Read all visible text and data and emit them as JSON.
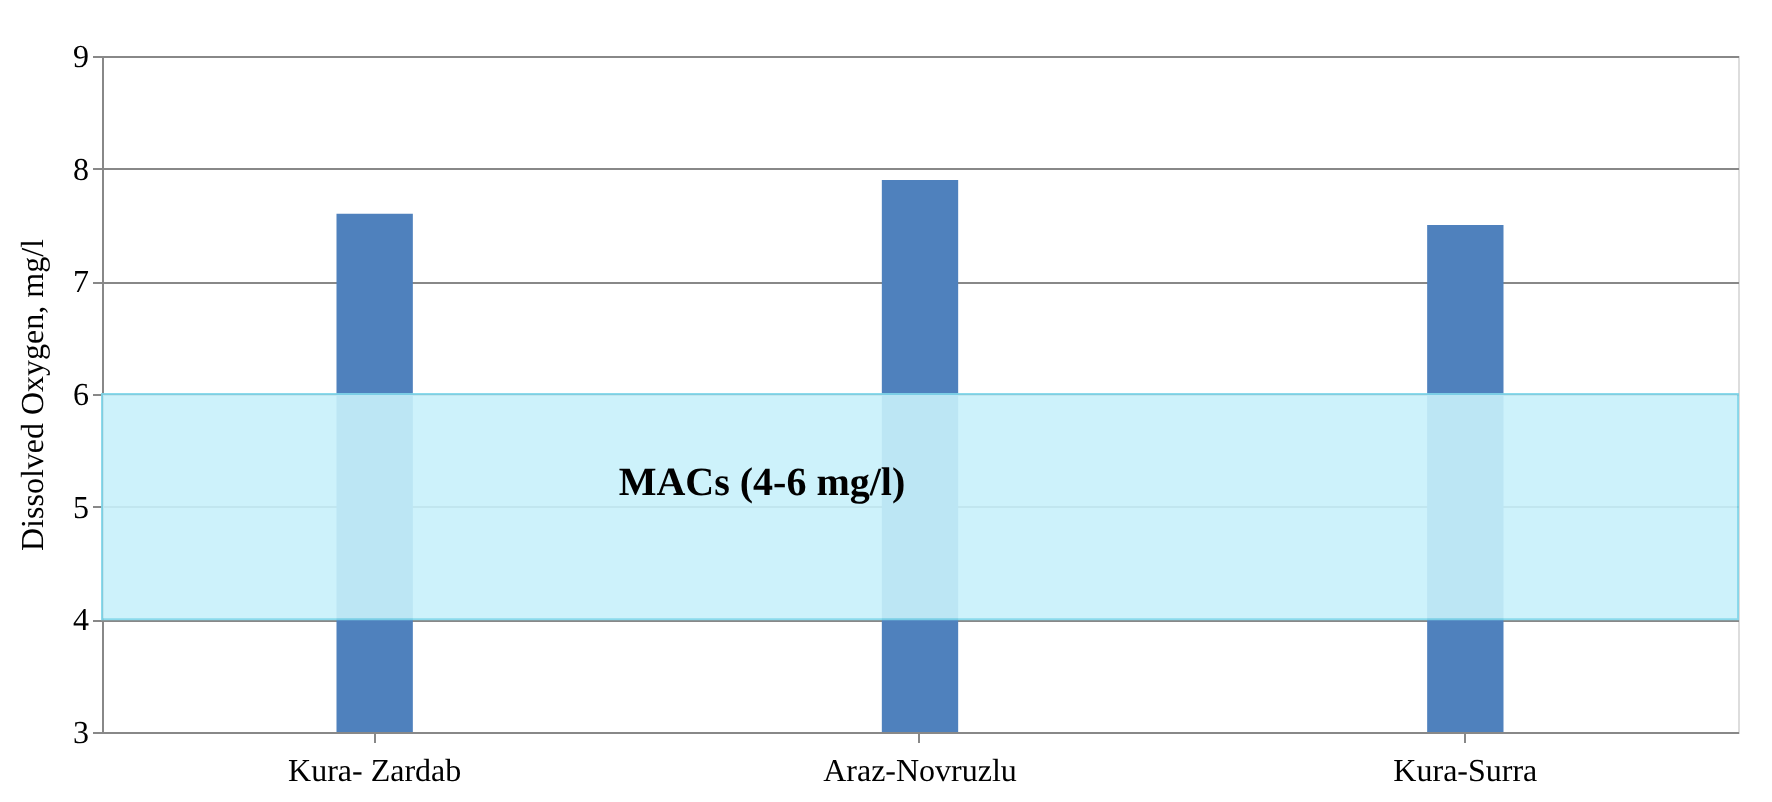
{
  "chart_data": {
    "type": "bar",
    "ylabel": "Dissolved Oxygen, mg/l",
    "categories": [
      "Kura- Zardab",
      "Araz-Novruzlu",
      "Kura-Surra"
    ],
    "values": [
      7.6,
      7.9,
      7.5
    ],
    "color": "#4f81bd",
    "ylim": [
      3,
      9
    ],
    "yticks": [
      3,
      4,
      5,
      6,
      7,
      8,
      9
    ],
    "grid": "y",
    "bands": [
      {
        "axis": "y",
        "from": 4,
        "to": 6,
        "label": "MACs (4-6 mg/l)",
        "color": "#c8f1fb"
      }
    ]
  }
}
